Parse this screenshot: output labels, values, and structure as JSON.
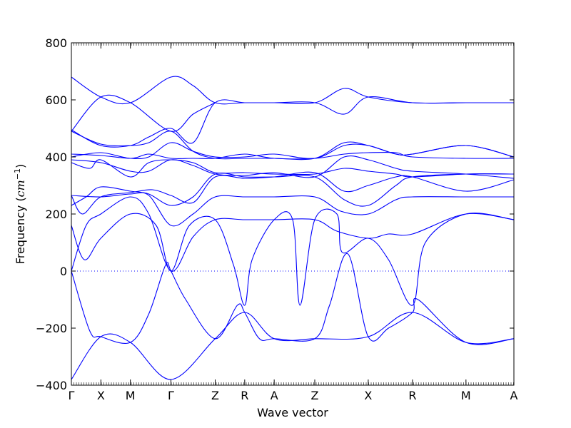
{
  "chart_data": {
    "type": "line",
    "title": "",
    "xlabel": "Wave vector",
    "ylabel_prefix": "Frequency (",
    "ylabel_unit": "cm",
    "ylabel_exp": "−1",
    "ylabel_suffix": ")",
    "ylim": [
      -400,
      800
    ],
    "yticks": [
      {
        "value": -400,
        "label": "−400"
      },
      {
        "value": -200,
        "label": "−200"
      },
      {
        "value": 0,
        "label": "0"
      },
      {
        "value": 200,
        "label": "200"
      },
      {
        "value": 400,
        "label": "400"
      },
      {
        "value": 600,
        "label": "600"
      },
      {
        "value": 800,
        "label": "800"
      }
    ],
    "xlim": [
      0,
      12
    ],
    "xticks": [
      {
        "value": 0,
        "label": "Γ"
      },
      {
        "value": 0.8,
        "label": "X"
      },
      {
        "value": 1.6,
        "label": "M"
      },
      {
        "value": 2.7,
        "label": "Γ"
      },
      {
        "value": 3.9,
        "label": "Z"
      },
      {
        "value": 4.7,
        "label": "R"
      },
      {
        "value": 5.5,
        "label": "A"
      },
      {
        "value": 6.6,
        "label": "Z"
      },
      {
        "value": 8.05,
        "label": "X"
      },
      {
        "value": 9.25,
        "label": "R"
      },
      {
        "value": 10.7,
        "label": "M"
      },
      {
        "value": 12,
        "label": "A"
      }
    ],
    "zero_line": true,
    "grid": false,
    "series": [
      {
        "x": [
          0,
          0.8,
          1.6,
          2.7,
          3.9,
          4.7,
          5.5,
          6.6,
          8.05,
          9.25,
          10.7,
          12
        ],
        "y": [
          -380,
          -230,
          -250,
          -380,
          -237,
          -145,
          -237,
          -237,
          -230,
          -145,
          -250,
          -237
        ]
      },
      {
        "x": [
          0,
          0.5,
          0.8,
          1.6,
          2.1,
          2.55,
          2.7,
          3.1,
          3.9,
          4.5,
          4.7,
          5.1,
          5.5,
          6.6,
          7.0,
          7.5,
          8.05,
          8.6,
          9.25,
          9.4,
          10.7,
          12
        ],
        "y": [
          0,
          -210,
          -230,
          -250,
          -150,
          20,
          0,
          -100,
          -237,
          -120,
          -145,
          -237,
          -237,
          -237,
          -120,
          60,
          -230,
          -200,
          -145,
          -100,
          -250,
          -237
        ]
      },
      {
        "x": [
          0,
          0.35,
          0.8,
          1.6,
          2.3,
          2.7,
          3.2,
          3.9,
          4.4,
          4.7,
          4.9,
          5.5,
          6.0,
          6.2,
          6.6,
          7.2,
          7.35,
          8.05,
          8.6,
          9.25,
          9.6,
          10.7,
          12
        ],
        "y": [
          160,
          40,
          115,
          200,
          160,
          0,
          160,
          180,
          20,
          -120,
          40,
          180,
          180,
          -120,
          180,
          200,
          65,
          115,
          40,
          -120,
          100,
          200,
          180
        ]
      },
      {
        "x": [
          0,
          0.4,
          0.8,
          1.6,
          2.1,
          2.7,
          3.3,
          3.9,
          4.7,
          5.5,
          6.6,
          7.2,
          8.05,
          8.6,
          9.25,
          10.7,
          12
        ],
        "y": [
          0,
          160,
          200,
          260,
          200,
          0,
          120,
          180,
          180,
          180,
          180,
          140,
          115,
          130,
          130,
          200,
          180
        ]
      },
      {
        "x": [
          0,
          0.8,
          1.6,
          2.1,
          2.7,
          3.3,
          3.9,
          4.7,
          5.5,
          6.6,
          7.3,
          8.05,
          8.8,
          9.25,
          10.7,
          12
        ],
        "y": [
          265,
          260,
          270,
          265,
          160,
          200,
          260,
          260,
          260,
          260,
          210,
          200,
          250,
          260,
          260,
          260
        ]
      },
      {
        "x": [
          0,
          0.4,
          0.8,
          1.6,
          2.1,
          2.7,
          3.3,
          3.9,
          4.7,
          5.5,
          6.6,
          7.4,
          8.05,
          8.8,
          9.25,
          10.7,
          12
        ],
        "y": [
          230,
          260,
          295,
          280,
          270,
          230,
          260,
          340,
          330,
          330,
          330,
          250,
          230,
          300,
          330,
          340,
          340
        ]
      },
      {
        "x": [
          0,
          0.3,
          0.8,
          1.6,
          2.2,
          2.7,
          3.3,
          3.9,
          4.7,
          5.5,
          6.6,
          7.4,
          8.05,
          8.8,
          9.25,
          10.7,
          12
        ],
        "y": [
          265,
          200,
          260,
          275,
          285,
          265,
          240,
          330,
          325,
          330,
          345,
          280,
          300,
          330,
          330,
          280,
          320
        ]
      },
      {
        "x": [
          0,
          0.5,
          0.8,
          1.6,
          2.1,
          2.7,
          3.3,
          3.9,
          4.7,
          5.5,
          6.6,
          7.4,
          8.05,
          8.8,
          9.25,
          10.7,
          12
        ],
        "y": [
          380,
          360,
          390,
          330,
          380,
          390,
          380,
          345,
          345,
          340,
          340,
          360,
          350,
          340,
          330,
          340,
          340
        ]
      },
      {
        "x": [
          0,
          0.8,
          1.6,
          2.1,
          2.7,
          3.3,
          3.9,
          4.7,
          5.5,
          6.6,
          7.4,
          8.05,
          8.8,
          9.25,
          10.7,
          12
        ],
        "y": [
          390,
          380,
          350,
          350,
          390,
          370,
          340,
          335,
          345,
          330,
          400,
          390,
          360,
          350,
          340,
          325
        ]
      },
      {
        "x": [
          0,
          0.8,
          1.6,
          2.1,
          2.7,
          3.3,
          3.9,
          4.7,
          5.5,
          6.6,
          7.4,
          8.05,
          8.8,
          9.25,
          10.7,
          12
        ],
        "y": [
          400,
          415,
          395,
          410,
          395,
          395,
          395,
          410,
          395,
          395,
          410,
          415,
          415,
          400,
          395,
          395
        ]
      },
      {
        "x": [
          0,
          0.8,
          1.6,
          2.1,
          2.7,
          3.3,
          3.9,
          4.7,
          5.5,
          6.6,
          7.4,
          8.05,
          8.8,
          9.25,
          10.7,
          12
        ],
        "y": [
          410,
          405,
          395,
          400,
          450,
          420,
          400,
          400,
          410,
          395,
          440,
          440,
          410,
          410,
          440,
          400
        ]
      },
      {
        "x": [
          0,
          0.8,
          1.6,
          2.1,
          2.7,
          3.3,
          3.9,
          4.7,
          5.5,
          6.6,
          7.4,
          8.05,
          8.8,
          9.25,
          10.7,
          12
        ],
        "y": [
          490,
          445,
          440,
          450,
          490,
          420,
          395,
          395,
          395,
          395,
          450,
          440,
          410,
          410,
          440,
          400
        ]
      },
      {
        "x": [
          0,
          0.8,
          1.6,
          2.1,
          2.7,
          3.3,
          3.9,
          4.7,
          5.5,
          6.6,
          7.4,
          8.05,
          9.25,
          10.7,
          12
        ],
        "y": [
          495,
          440,
          440,
          470,
          500,
          450,
          590,
          590,
          590,
          590,
          550,
          610,
          590,
          590,
          590
        ]
      },
      {
        "x": [
          0,
          0.8,
          1.6,
          2.7,
          3.3,
          3.9,
          4.7,
          5.5,
          6.6,
          7.4,
          8.05,
          9.25,
          10.7,
          12
        ],
        "y": [
          680,
          610,
          590,
          680,
          650,
          590,
          590,
          590,
          590,
          640,
          610,
          590,
          590,
          590
        ]
      },
      {
        "x": [
          0,
          0.8,
          1.6,
          2.7,
          3.3,
          3.9
        ],
        "y": [
          490,
          610,
          590,
          490,
          550,
          590
        ]
      }
    ]
  }
}
